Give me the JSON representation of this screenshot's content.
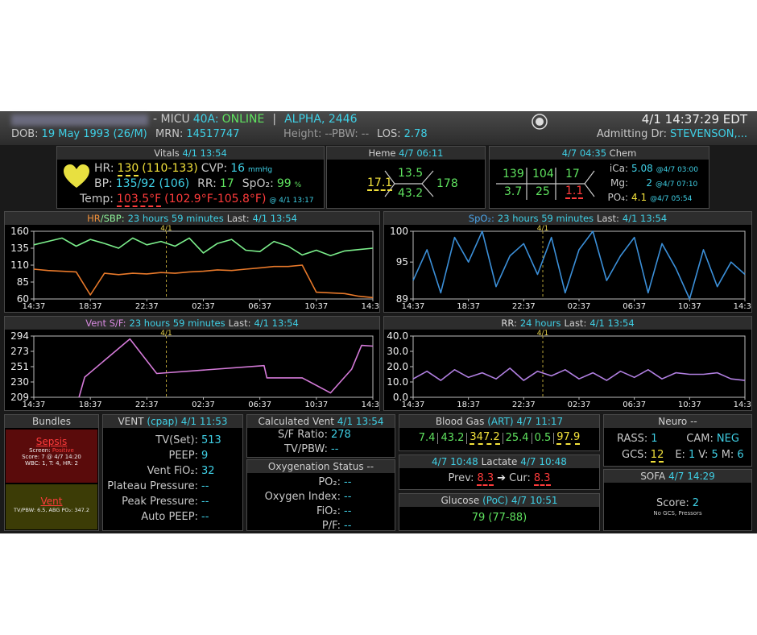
{
  "header": {
    "unit": "- MICU",
    "bed": "40A:",
    "status": "ONLINE",
    "divider": "|",
    "patient": "ALPHA, 2446",
    "datetime": "4/1 14:37:29 EDT",
    "dob_label": "DOB:",
    "dob": "19 May 1993 (26/M)",
    "mrn_label": "MRN:",
    "mrn": "14517747",
    "height_label": "Height:",
    "height": "--",
    "pbw_label": "PBW:",
    "pbw": "--",
    "los_label": "LOS:",
    "los": "2.78",
    "dr_label": "Admitting Dr:",
    "dr": "STEVENSON,..."
  },
  "vitals": {
    "title": "Vitals",
    "time": "4/1 13:54",
    "hr_label": "HR:",
    "hr": "130",
    "hr_range": "(110-133)",
    "cvp_label": "CVP:",
    "cvp": "16",
    "cvp_unit": "mmHg",
    "bp_label": "BP:",
    "bp": "135/92 (106)",
    "rr_label": "RR:",
    "rr": "17",
    "spo2_label": "SpO₂:",
    "spo2": "99",
    "spo2_unit": "%",
    "temp_label": "Temp:",
    "temp": "103.5°F",
    "temp_range": "(102.9°F-105.8°F)",
    "temp_time": "@ 4/1 13:17"
  },
  "heme": {
    "title": "Heme",
    "time": "4/7 06:11",
    "wbc": "17.1",
    "hgb": "13.5",
    "hct": "43.2",
    "plt": "178"
  },
  "chem": {
    "time": "4/7 04:35",
    "title": "Chem",
    "na": "139",
    "cl": "104",
    "bun": "17",
    "k": "3.7",
    "co2": "25",
    "cr": "1.1",
    "ica_label": "iCa:",
    "ica": "5.08",
    "ica_time": "@4/7 03:00",
    "mg_label": "Mg:",
    "mg": "2",
    "mg_time": "@4/7 07:10",
    "po4_label": "PO₄:",
    "po4": "4.1",
    "po4_time": "@4/7 05:54"
  },
  "bundles": {
    "title": "Bundles",
    "sepsis": {
      "title": "Sepsis",
      "screen_label": "Screen:",
      "screen": "Positive",
      "score": "Score: 7 @ 4/7 14:20",
      "detail": "WBC: 1, T: 4, HR: 2"
    },
    "vent": {
      "title": "Vent",
      "detail": "TV/PBW: 6.5, ABG PO₂: 347.2"
    }
  },
  "vent": {
    "title": "VENT",
    "mode": "(cpap)",
    "time": "4/1 11:53",
    "rows": [
      {
        "label": "TV(Set):",
        "value": "513"
      },
      {
        "label": "PEEP:",
        "value": "9"
      },
      {
        "label": "Vent FiO₂:",
        "value": "32"
      },
      {
        "label": "Plateau Pressure:",
        "value": "--"
      },
      {
        "label": "Peak Pressure:",
        "value": "--"
      },
      {
        "label": "Auto PEEP:",
        "value": "--"
      }
    ]
  },
  "calc_vent": {
    "title": "Calculated Vent",
    "time": "4/1 13:54",
    "rows": [
      {
        "label": "S/F Ratio:",
        "value": "278"
      },
      {
        "label": "TV/PBW:",
        "value": "--"
      }
    ]
  },
  "oxygenation": {
    "title": "Oxygenation Status",
    "time": "--",
    "rows": [
      {
        "label": "PO₂:",
        "value": "--"
      },
      {
        "label": "Oxygen Index:",
        "value": "--"
      },
      {
        "label": "FiO₂:",
        "value": "--"
      },
      {
        "label": "P/F:",
        "value": "--"
      }
    ]
  },
  "blood_gas": {
    "title": "Blood Gas",
    "type": "(ART)",
    "time": "4/7 11:17",
    "values": [
      "7.4",
      "43.2",
      "347.2",
      "25.4",
      "0.5",
      "97.9"
    ]
  },
  "lactate": {
    "time1": "4/7 10:48",
    "title": "Lactate",
    "time2": "4/7 10:48",
    "prev_label": "Prev:",
    "prev": "8.3",
    "arrow": "➔",
    "cur_label": "Cur:",
    "cur": "8.3"
  },
  "glucose": {
    "title": "Glucose",
    "type": "(PoC)",
    "time": "4/7 10:51",
    "value": "79",
    "range": "(77-88)"
  },
  "neuro": {
    "title": "Neuro",
    "time": "--",
    "rass_label": "RASS:",
    "rass": "1",
    "cam_label": "CAM:",
    "cam": "NEG",
    "gcs_label": "GCS:",
    "gcs": "12",
    "e_label": "E:",
    "e": "1",
    "v_label": "V:",
    "v": "5",
    "m_label": "M:",
    "m": "6"
  },
  "sofa": {
    "title": "SOFA",
    "time": "4/7 14:29",
    "score_label": "Score:",
    "score": "2",
    "note": "No GCS, Pressors"
  },
  "chart_data": [
    {
      "type": "line",
      "title_parts": [
        {
          "text": "HR",
          "color": "#f0903a"
        },
        {
          "text": "/SBP:",
          "color": "#8ef59a"
        }
      ],
      "duration": "23 hours 59 minutes",
      "last_label": "Last:",
      "last_time": "4/1 13:54",
      "x": [
        0,
        1,
        2,
        3,
        4,
        5,
        6,
        7,
        8,
        9,
        10,
        11,
        12,
        13,
        14,
        15,
        16,
        17,
        18,
        19,
        20,
        21,
        22,
        23,
        24
      ],
      "xlim": [
        0,
        24
      ],
      "xticks": [
        {
          "value": 0,
          "label": "14:37"
        },
        {
          "value": 4,
          "label": "18:37"
        },
        {
          "value": 8,
          "label": "22:37"
        },
        {
          "value": 12,
          "label": "02:37"
        },
        {
          "value": 16,
          "label": "06:37"
        },
        {
          "value": 20,
          "label": "10:37"
        },
        {
          "value": 24,
          "label": "14:37"
        }
      ],
      "ylim": [
        60,
        160
      ],
      "yticks": [
        60,
        85,
        110,
        135,
        160
      ],
      "marker": {
        "value": 9.38,
        "label": "4/1"
      },
      "series": [
        {
          "color": "#7cf08c",
          "values": [
            140,
            145,
            150,
            138,
            148,
            142,
            135,
            150,
            140,
            145,
            138,
            150,
            128,
            142,
            148,
            132,
            130,
            145,
            138,
            125,
            132,
            124,
            131,
            133,
            135
          ]
        },
        {
          "color": "#e8792a",
          "values": [
            104,
            102,
            101,
            100,
            66,
            98,
            96,
            98,
            97,
            99,
            98,
            100,
            101,
            103,
            102,
            104,
            106,
            108,
            108,
            110,
            70,
            69,
            68,
            64,
            62
          ]
        }
      ]
    },
    {
      "type": "line",
      "title_parts": [
        {
          "text": "SpO₂:",
          "color": "#4aa3e8"
        }
      ],
      "duration": "23 hours 59 minutes",
      "last_label": "Last:",
      "last_time": "4/1 13:54",
      "x": [
        0,
        1,
        2,
        3,
        4,
        5,
        6,
        7,
        8,
        9,
        10,
        11,
        12,
        13,
        14,
        15,
        16,
        17,
        18,
        19,
        20,
        21,
        22,
        23,
        24
      ],
      "xlim": [
        0,
        24
      ],
      "xticks": [
        {
          "value": 0,
          "label": "14:37"
        },
        {
          "value": 4,
          "label": "18:37"
        },
        {
          "value": 8,
          "label": "22:37"
        },
        {
          "value": 12,
          "label": "02:37"
        },
        {
          "value": 16,
          "label": "06:37"
        },
        {
          "value": 20,
          "label": "10:37"
        },
        {
          "value": 24,
          "label": "14:37"
        }
      ],
      "ylim": [
        89,
        100
      ],
      "yticks": [
        89,
        95,
        100
      ],
      "marker": {
        "value": 9.38,
        "label": "4/1"
      },
      "series": [
        {
          "color": "#3b8fd8",
          "values": [
            92,
            97,
            90,
            99,
            95,
            100,
            91,
            96,
            98,
            93,
            99,
            90,
            97,
            100,
            92,
            96,
            99,
            90,
            98,
            94,
            89,
            97,
            91,
            95,
            93
          ]
        }
      ]
    },
    {
      "type": "line",
      "title_parts": [
        {
          "text": "Vent S/F:",
          "color": "#d78ae0"
        }
      ],
      "duration": "23 hours 59 minutes",
      "last_label": "Last:",
      "last_time": "4/1 13:54",
      "x": [
        3.2,
        3.6,
        6.8,
        8.7,
        16.3,
        16.5,
        19,
        21,
        22.5,
        23.2,
        24
      ],
      "xlim": [
        0,
        24
      ],
      "xticks": [
        {
          "value": 0,
          "label": "14:37"
        },
        {
          "value": 4,
          "label": "18:37"
        },
        {
          "value": 8,
          "label": "22:37"
        },
        {
          "value": 12,
          "label": "02:37"
        },
        {
          "value": 16,
          "label": "06:37"
        },
        {
          "value": 20,
          "label": "10:37"
        },
        {
          "value": 24,
          "label": "14:37"
        }
      ],
      "ylim": [
        209,
        294
      ],
      "yticks": [
        209,
        {
          "value": 230.25,
          "label": "230"
        },
        {
          "value": 251.5,
          "label": "251"
        },
        {
          "value": 272.75,
          "label": "273"
        },
        294
      ],
      "marker": {
        "value": 9.38,
        "label": "4/1"
      },
      "series": [
        {
          "color": "#d47ad8",
          "values": [
            209,
            237,
            290,
            242,
            253,
            236,
            236,
            215,
            248,
            281,
            280
          ]
        }
      ]
    },
    {
      "type": "line",
      "title_parts": [
        {
          "text": "RR:",
          "color": "#dddddd"
        }
      ],
      "duration": "24 hours",
      "last_label": "Last:",
      "last_time": "4/1 13:54",
      "x": [
        0,
        1,
        2,
        3,
        4,
        5,
        6,
        7,
        8,
        9,
        10,
        11,
        12,
        13,
        14,
        15,
        16,
        17,
        18,
        19,
        20,
        21,
        22,
        23,
        24
      ],
      "xlim": [
        0,
        24
      ],
      "xticks": [
        {
          "value": 0,
          "label": "14:37"
        },
        {
          "value": 4,
          "label": "18:37"
        },
        {
          "value": 8,
          "label": "22:37"
        },
        {
          "value": 12,
          "label": "02:37"
        },
        {
          "value": 16,
          "label": "06:37"
        },
        {
          "value": 20,
          "label": "10:37"
        },
        {
          "value": 24,
          "label": "14:37"
        }
      ],
      "ylim": [
        0,
        40
      ],
      "yticks": [
        {
          "value": 0,
          "label": "0.0"
        },
        {
          "value": 10,
          "label": "10.0"
        },
        {
          "value": 20,
          "label": "20.0"
        },
        {
          "value": 30,
          "label": "30.0"
        },
        {
          "value": 40,
          "label": "40.0"
        }
      ],
      "marker": {
        "value": 9.38,
        "label": "4/1"
      },
      "series": [
        {
          "color": "#b07fe0",
          "values": [
            12,
            17,
            11,
            18,
            13,
            16,
            12,
            19,
            11,
            17,
            14,
            18,
            12,
            16,
            11,
            17,
            13,
            18,
            12,
            16,
            15,
            15,
            16,
            12,
            11
          ]
        }
      ]
    }
  ]
}
